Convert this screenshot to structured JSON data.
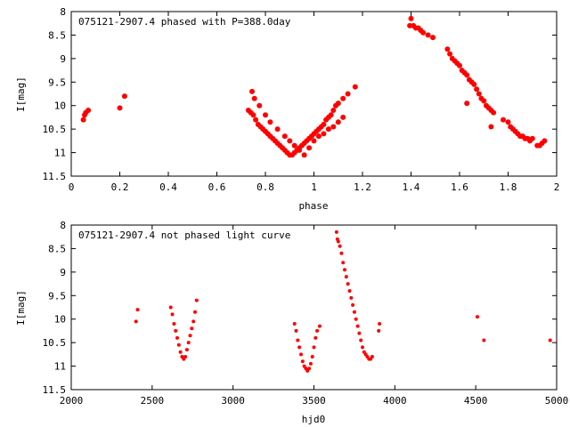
{
  "chart_data": [
    {
      "type": "scatter",
      "title": "075121-2907.4 phased with P=388.0day",
      "xlabel": "phase",
      "ylabel": "I[mag]",
      "xlim": [
        0,
        2
      ],
      "ylim": [
        11.5,
        8
      ],
      "y_inverted": true,
      "grid": false,
      "x_ticks": [
        "0",
        "0.2",
        "0.4",
        "0.6",
        "0.8",
        "1",
        "1.2",
        "1.4",
        "1.6",
        "1.8",
        "2"
      ],
      "y_ticks": [
        "8",
        "8.5",
        "9",
        "9.5",
        "10",
        "10.5",
        "11",
        "11.5"
      ],
      "marker_color": "#ff0000",
      "series": [
        {
          "x": [
            0.05,
            0.055,
            0.06,
            0.07,
            0.2,
            0.22,
            0.73,
            0.74,
            0.75,
            0.76,
            0.77,
            0.78,
            0.79,
            0.8,
            0.81,
            0.82,
            0.83,
            0.84,
            0.85,
            0.86,
            0.87,
            0.88,
            0.89,
            0.9,
            0.91,
            0.92,
            0.93,
            0.94,
            0.95,
            0.96,
            0.97,
            0.98,
            0.99,
            1.0,
            1.01,
            1.02,
            1.03,
            1.04,
            1.05,
            1.06,
            1.07,
            1.08,
            1.09,
            1.1,
            1.12,
            1.14,
            1.17,
            0.745,
            0.755,
            0.775,
            0.8,
            0.82,
            0.85,
            0.88,
            0.9,
            0.92,
            0.94,
            0.96,
            0.98,
            1.0,
            1.02,
            1.04,
            1.06,
            1.08,
            1.1,
            1.12,
            1.395,
            1.4,
            1.41,
            1.42,
            1.43,
            1.44,
            1.45,
            1.47,
            1.49,
            1.55,
            1.56,
            1.57,
            1.58,
            1.59,
            1.6,
            1.61,
            1.62,
            1.63,
            1.64,
            1.65,
            1.66,
            1.67,
            1.68,
            1.69,
            1.7,
            1.71,
            1.72,
            1.73,
            1.74,
            1.63,
            1.73,
            1.78,
            1.8,
            1.81,
            1.82,
            1.83,
            1.84,
            1.85,
            1.86,
            1.87,
            1.88,
            1.89,
            1.9,
            1.92,
            1.93,
            1.94,
            1.95
          ],
          "y": [
            10.3,
            10.2,
            10.15,
            10.1,
            10.05,
            9.8,
            10.1,
            10.15,
            10.2,
            10.3,
            10.4,
            10.45,
            10.5,
            10.55,
            10.6,
            10.65,
            10.7,
            10.75,
            10.8,
            10.85,
            10.9,
            10.95,
            11.0,
            11.05,
            11.05,
            11.0,
            10.95,
            10.9,
            10.85,
            10.8,
            10.75,
            10.7,
            10.65,
            10.6,
            10.55,
            10.5,
            10.45,
            10.4,
            10.3,
            10.25,
            10.2,
            10.1,
            10.0,
            9.95,
            9.85,
            9.75,
            9.6,
            9.7,
            9.85,
            10.0,
            10.2,
            10.35,
            10.5,
            10.65,
            10.75,
            10.85,
            10.95,
            11.05,
            10.9,
            10.75,
            10.65,
            10.6,
            10.5,
            10.45,
            10.35,
            10.25,
            8.3,
            8.15,
            8.3,
            8.35,
            8.35,
            8.4,
            8.45,
            8.5,
            8.55,
            8.8,
            8.9,
            9.0,
            9.05,
            9.1,
            9.15,
            9.25,
            9.3,
            9.35,
            9.45,
            9.5,
            9.55,
            9.65,
            9.75,
            9.85,
            9.9,
            10.0,
            10.05,
            10.1,
            10.15,
            9.95,
            10.45,
            10.3,
            10.35,
            10.45,
            10.5,
            10.55,
            10.6,
            10.65,
            10.65,
            10.7,
            10.7,
            10.75,
            10.7,
            10.85,
            10.85,
            10.8,
            10.75
          ]
        }
      ]
    },
    {
      "type": "scatter",
      "title": "075121-2907.4 not phased light curve",
      "xlabel": "hjd0",
      "ylabel": "I[mag]",
      "xlim": [
        2000,
        5000
      ],
      "ylim": [
        11.5,
        8
      ],
      "y_inverted": true,
      "grid": false,
      "x_ticks": [
        "2000",
        "2500",
        "3000",
        "3500",
        "4000",
        "4500",
        "5000"
      ],
      "y_ticks": [
        "8",
        "8.5",
        "9",
        "9.5",
        "10",
        "10.5",
        "11",
        "11.5"
      ],
      "marker_color": "#ff0000",
      "series": [
        {
          "x": [
            2400,
            2410,
            2615,
            2625,
            2635,
            2645,
            2655,
            2665,
            2675,
            2685,
            2695,
            2705,
            2715,
            2725,
            2735,
            2745,
            2755,
            2765,
            2775,
            3380,
            3390,
            3400,
            3410,
            3420,
            3430,
            3440,
            3450,
            3460,
            3470,
            3480,
            3490,
            3500,
            3510,
            3520,
            3535,
            3640,
            3645,
            3650,
            3660,
            3670,
            3680,
            3690,
            3700,
            3710,
            3720,
            3730,
            3740,
            3750,
            3760,
            3770,
            3780,
            3790,
            3800,
            3810,
            3820,
            3830,
            3840,
            3850,
            3860,
            3900,
            3905,
            4510,
            4550,
            4960
          ],
          "y": [
            10.05,
            9.8,
            9.75,
            9.9,
            10.1,
            10.25,
            10.4,
            10.55,
            10.7,
            10.8,
            10.85,
            10.8,
            10.65,
            10.5,
            10.35,
            10.2,
            10.05,
            9.85,
            9.6,
            10.1,
            10.25,
            10.45,
            10.6,
            10.75,
            10.9,
            11.0,
            11.05,
            11.1,
            11.05,
            10.95,
            10.8,
            10.6,
            10.4,
            10.25,
            10.15,
            8.15,
            8.3,
            8.35,
            8.45,
            8.6,
            8.8,
            8.95,
            9.1,
            9.25,
            9.4,
            9.55,
            9.7,
            9.85,
            10.0,
            10.15,
            10.3,
            10.45,
            10.6,
            10.7,
            10.75,
            10.8,
            10.85,
            10.85,
            10.8,
            10.25,
            10.1,
            9.95,
            10.45,
            10.45
          ]
        }
      ]
    }
  ]
}
